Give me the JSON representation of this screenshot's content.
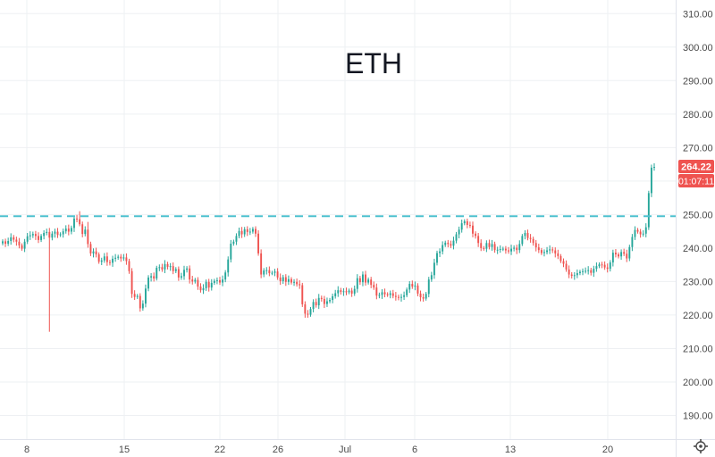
{
  "chart_data": {
    "type": "candlestick",
    "title": "ETH",
    "y_ticks": [
      190,
      200,
      210,
      220,
      230,
      240,
      250,
      260,
      270,
      280,
      290,
      300,
      310
    ],
    "ylim": [
      184,
      313
    ],
    "x_ticks": [
      "8",
      "15",
      "22",
      "26",
      "Jul",
      "6",
      "13",
      "20"
    ],
    "grid": true,
    "colors": {
      "up": "#26a69a",
      "down": "#ef5350",
      "level_line": "#4ec1cf",
      "price_tag": "#ef5350"
    },
    "horizontal_level": 249.5,
    "last_price": "264.22",
    "countdown": "01:07:11",
    "close_series": [
      242.0,
      241.3,
      242.1,
      243.2,
      242.5,
      241.9,
      240.8,
      239.8,
      241.9,
      243.5,
      243.8,
      244.2,
      243.6,
      242.4,
      243.6,
      244.5,
      244.8,
      243.1,
      244.3,
      244.9,
      243.9,
      244.1,
      245.0,
      245.8,
      244.9,
      246.0,
      248.8,
      248.6,
      247.1,
      244.2,
      245.5,
      241.2,
      238.4,
      239.0,
      238.1,
      235.9,
      236.3,
      237.5,
      235.8,
      235.6,
      236.8,
      237.1,
      237.4,
      236.9,
      237.2,
      236.1,
      233.1,
      226.3,
      225.4,
      225.7,
      222.0,
      223.4,
      227.9,
      231.2,
      231.6,
      230.9,
      234.1,
      234.3,
      233.6,
      235.2,
      234.4,
      234.6,
      233.1,
      233.7,
      231.2,
      231.6,
      233.5,
      233.9,
      230.6,
      230.0,
      230.5,
      228.5,
      227.4,
      228.0,
      229.9,
      228.2,
      229.6,
      230.2,
      230.4,
      229.7,
      230.6,
      232.7,
      236.6,
      241.3,
      241.9,
      243.6,
      245.1,
      244.1,
      245.6,
      244.8,
      244.9,
      245.7,
      244.3,
      238.4,
      232.1,
      233.3,
      233.4,
      232.5,
      232.6,
      233.0,
      231.2,
      230.1,
      231.3,
      229.9,
      230.7,
      229.7,
      229.9,
      229.2,
      228.9,
      223.2,
      220.4,
      220.1,
      221.8,
      223.9,
      222.9,
      225.1,
      224.8,
      223.3,
      224.1,
      224.5,
      225.6,
      226.5,
      227.4,
      226.9,
      227.1,
      226.8,
      227.3,
      226.4,
      227.8,
      231.0,
      229.8,
      232.1,
      229.7,
      230.6,
      229.0,
      228.2,
      225.8,
      226.0,
      226.8,
      226.2,
      226.0,
      226.5,
      225.7,
      225.4,
      225.2,
      225.4,
      225.9,
      227.6,
      229.3,
      228.5,
      228.8,
      226.4,
      225.3,
      224.9,
      226.3,
      230.6,
      231.9,
      235.6,
      238.5,
      239.0,
      240.9,
      241.6,
      241.2,
      240.7,
      242.2,
      244.1,
      245.5,
      247.4,
      248.0,
      246.9,
      246.7,
      244.3,
      243.6,
      241.5,
      240.0,
      239.8,
      241.5,
      240.3,
      241.2,
      239.4,
      239.5,
      239.7,
      239.8,
      239.3,
      239.0,
      239.8,
      240.1,
      239.4,
      241.2,
      243.6,
      244.5,
      243.0,
      242.7,
      241.5,
      240.2,
      239.4,
      238.5,
      238.8,
      239.3,
      239.6,
      239.3,
      238.4,
      237.6,
      236.1,
      235.3,
      233.6,
      232.1,
      231.7,
      231.9,
      232.5,
      232.9,
      233.1,
      233.2,
      233.4,
      232.6,
      233.8,
      234.6,
      235.1,
      235.0,
      234.2,
      233.8,
      235.7,
      238.6,
      238.1,
      237.5,
      238.8,
      238.3,
      236.9,
      240.3,
      243.3,
      245.4,
      244.9,
      244.1,
      244.3,
      246.2,
      256.4,
      264.0,
      264.22
    ]
  }
}
